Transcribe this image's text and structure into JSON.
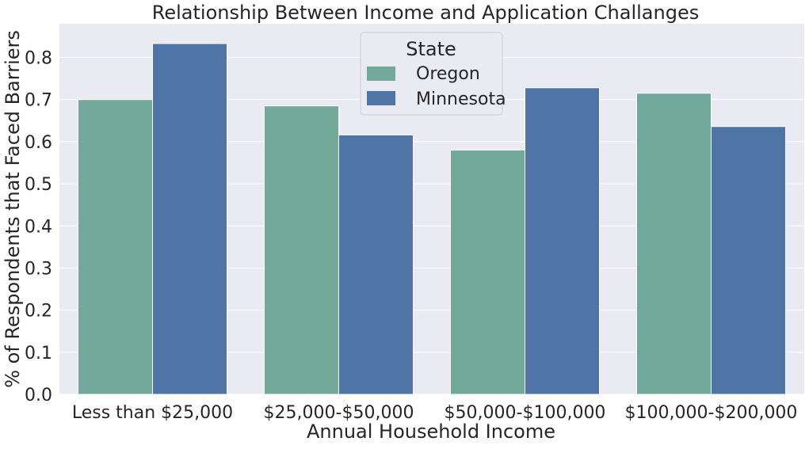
{
  "chart_data": {
    "type": "bar",
    "title": "Relationship Between Income and Application Challanges",
    "xlabel": "Annual Household Income",
    "ylabel": "% of Respondents that Faced Barriers",
    "categories": [
      "Less than $25,000",
      "$25,000-$50,000",
      "$50,000-$100,000",
      "$100,000-$200,000"
    ],
    "series": [
      {
        "name": "Oregon",
        "values": [
          0.7,
          0.685,
          0.58,
          0.715
        ],
        "color": "#72a99b"
      },
      {
        "name": "Minnesota",
        "values": [
          0.833,
          0.616,
          0.728,
          0.636
        ],
        "color": "#4f74a6"
      }
    ],
    "ylim": [
      0,
      0.88
    ],
    "yticks": [
      "0.0",
      "0.1",
      "0.2",
      "0.3",
      "0.4",
      "0.5",
      "0.6",
      "0.7",
      "0.8"
    ],
    "grid": true,
    "legend": {
      "title": "State",
      "placement": "top-center"
    },
    "colors": {
      "plot_background": "#eaeaf2",
      "grid": "#ffffff"
    }
  }
}
